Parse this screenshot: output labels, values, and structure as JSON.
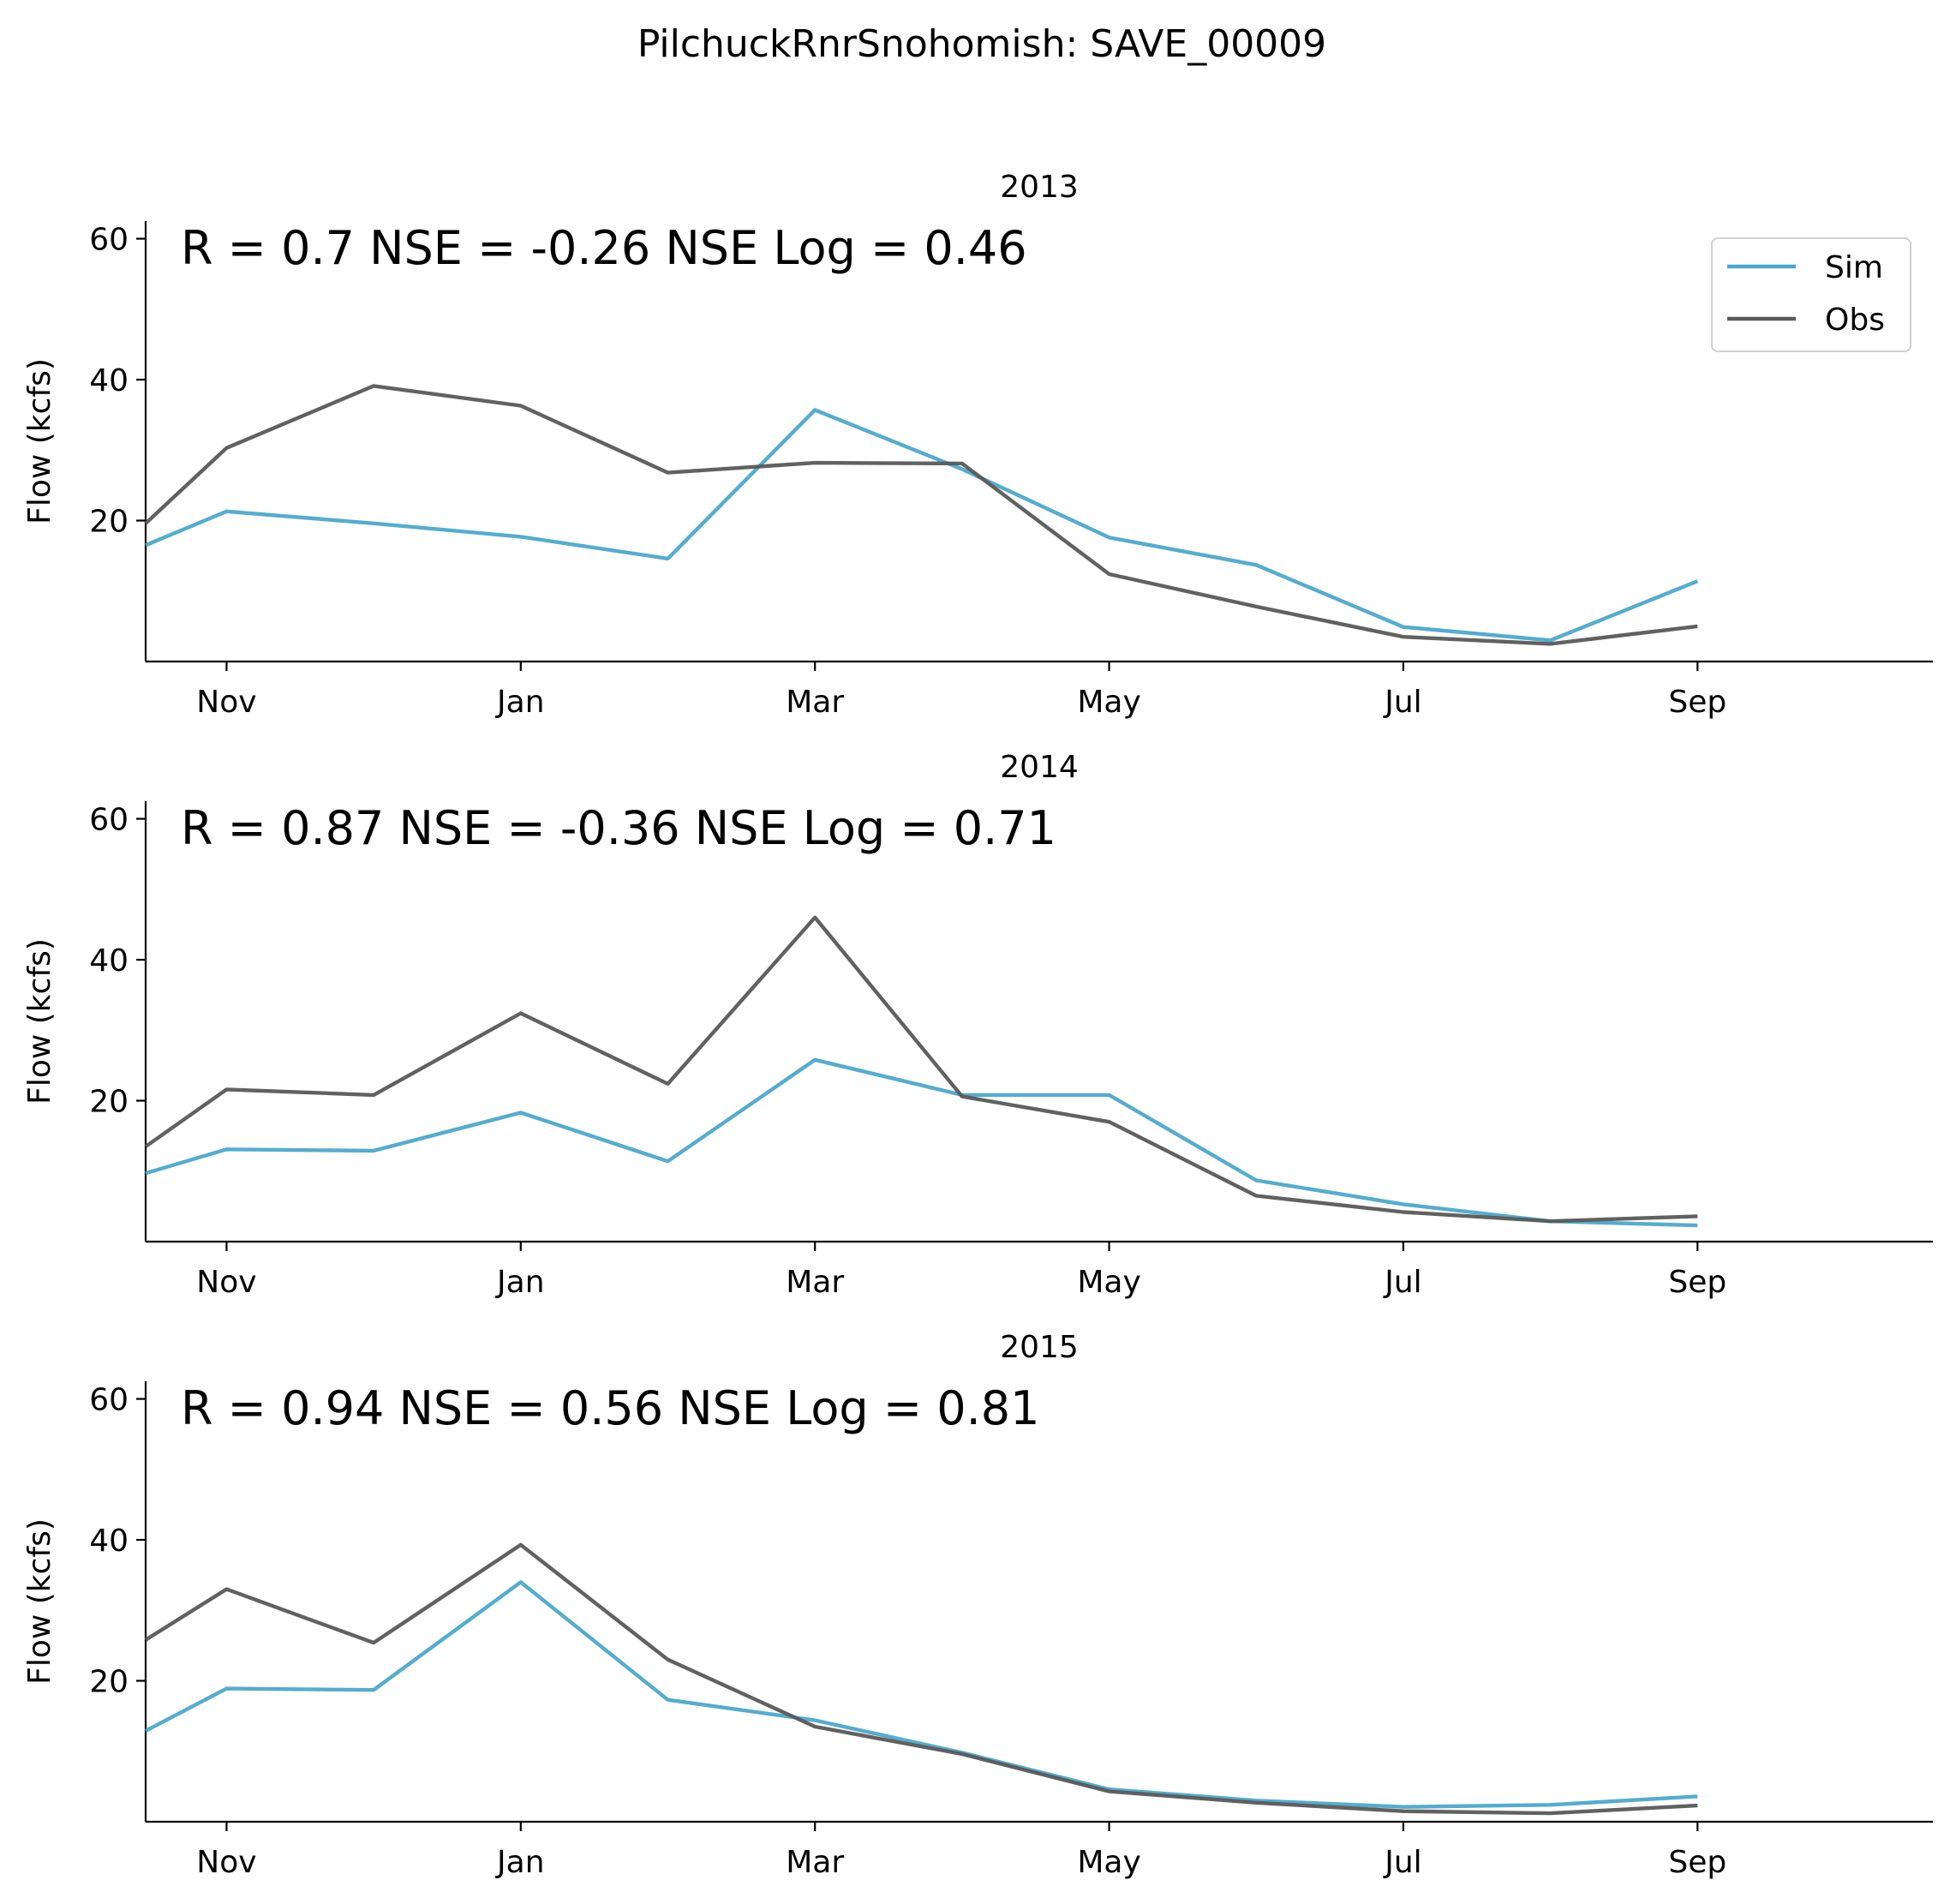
{
  "suptitle": "PilchuckRnrSnohomish: SAVE_00009",
  "chart_data": [
    {
      "type": "line",
      "title": "2013",
      "stats_text": "R = 0.7  NSE = -0.26  NSE Log = 0.46",
      "ylabel": "Flow (kcfs)",
      "ylim": [
        0,
        60
      ],
      "yticks": [
        "20",
        "40",
        "60"
      ],
      "xlim": [
        9.45,
        21.6
      ],
      "xticks": [
        {
          "x": 10,
          "label": "Nov"
        },
        {
          "x": 12,
          "label": "Jan"
        },
        {
          "x": 14,
          "label": "Mar"
        },
        {
          "x": 16,
          "label": "May"
        },
        {
          "x": 18,
          "label": "Jul"
        },
        {
          "x": 20,
          "label": "Sep"
        }
      ],
      "legend": "top-right",
      "series": [
        {
          "name": "Sim",
          "color": "#4fa6c9",
          "x": [
            9.45,
            10,
            11,
            12,
            13,
            14,
            15,
            16,
            17,
            18,
            19,
            20
          ],
          "values": [
            16.5,
            21.3,
            19.6,
            17.7,
            14.6,
            35.7,
            27.3,
            17.6,
            13.7,
            4.9,
            3.0,
            11.4
          ]
        },
        {
          "name": "Obs",
          "color": "#595959",
          "x": [
            9.45,
            10,
            11,
            12,
            13,
            14,
            15,
            16,
            17,
            18,
            19,
            20
          ],
          "values": [
            19.6,
            30.3,
            39.1,
            36.3,
            26.8,
            28.2,
            28.1,
            12.4,
            7.8,
            3.5,
            2.5,
            5.0
          ]
        }
      ]
    },
    {
      "type": "line",
      "title": "2014",
      "stats_text": "R = 0.87  NSE = -0.36  NSE Log = 0.71",
      "ylabel": "Flow (kcfs)",
      "ylim": [
        0,
        60
      ],
      "yticks": [
        "20",
        "40",
        "60"
      ],
      "xlim": [
        9.45,
        21.6
      ],
      "xticks": [
        {
          "x": 10,
          "label": "Nov"
        },
        {
          "x": 12,
          "label": "Jan"
        },
        {
          "x": 14,
          "label": "Mar"
        },
        {
          "x": 16,
          "label": "May"
        },
        {
          "x": 18,
          "label": "Jul"
        },
        {
          "x": 20,
          "label": "Sep"
        }
      ],
      "series": [
        {
          "name": "Sim",
          "color": "#4fa6c9",
          "x": [
            9.45,
            10,
            11,
            12,
            13,
            14,
            15,
            16,
            17,
            18,
            19,
            20
          ],
          "values": [
            9.7,
            13.1,
            12.9,
            18.3,
            11.4,
            25.8,
            20.8,
            20.8,
            8.7,
            5.3,
            2.9,
            2.3
          ]
        },
        {
          "name": "Obs",
          "color": "#595959",
          "x": [
            9.45,
            10,
            11,
            12,
            13,
            14,
            15,
            16,
            17,
            18,
            19,
            20
          ],
          "values": [
            13.5,
            21.6,
            20.8,
            32.4,
            22.4,
            46.0,
            20.6,
            17.0,
            6.5,
            4.2,
            2.9,
            3.6
          ]
        }
      ]
    },
    {
      "type": "line",
      "title": "2015",
      "stats_text": "R = 0.94  NSE = 0.56  NSE Log = 0.81",
      "ylabel": "Flow (kcfs)",
      "ylim": [
        0,
        60
      ],
      "yticks": [
        "20",
        "40",
        "60"
      ],
      "xlim": [
        9.45,
        21.6
      ],
      "xticks": [
        {
          "x": 10,
          "label": "Nov"
        },
        {
          "x": 12,
          "label": "Jan"
        },
        {
          "x": 14,
          "label": "Mar"
        },
        {
          "x": 16,
          "label": "May"
        },
        {
          "x": 18,
          "label": "Jul"
        },
        {
          "x": 20,
          "label": "Sep"
        }
      ],
      "series": [
        {
          "name": "Sim",
          "color": "#4fa6c9",
          "x": [
            9.45,
            10,
            11,
            12,
            13,
            14,
            15,
            16,
            17,
            18,
            19,
            20
          ],
          "values": [
            12.9,
            18.9,
            18.7,
            34.0,
            17.3,
            14.4,
            9.8,
            4.6,
            3.0,
            2.1,
            2.4,
            3.6
          ]
        },
        {
          "name": "Obs",
          "color": "#595959",
          "x": [
            9.45,
            10,
            11,
            12,
            13,
            14,
            15,
            16,
            17,
            18,
            19,
            20
          ],
          "values": [
            25.8,
            33.0,
            25.4,
            39.3,
            23.0,
            13.5,
            9.6,
            4.3,
            2.7,
            1.5,
            1.2,
            2.3
          ]
        }
      ]
    }
  ]
}
